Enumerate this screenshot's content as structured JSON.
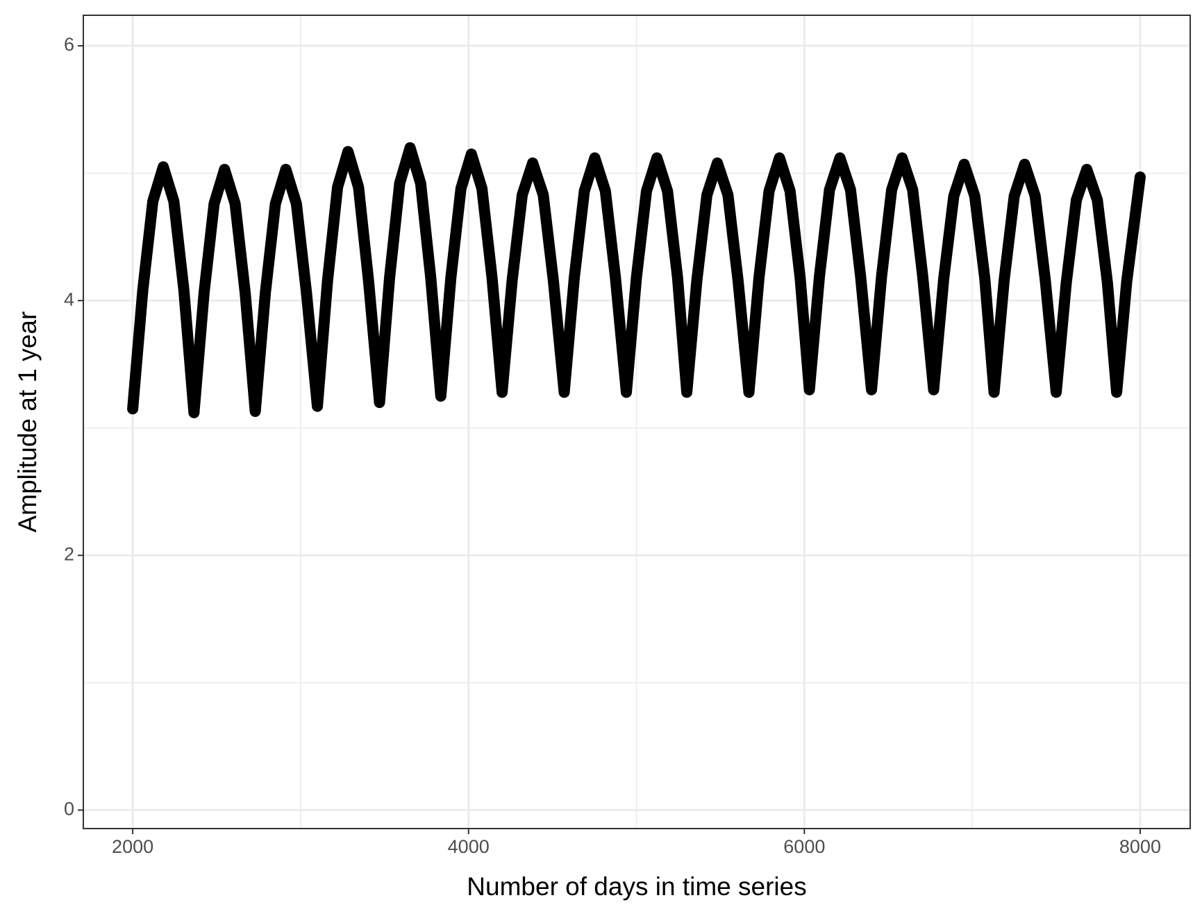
{
  "chart_data": {
    "type": "line",
    "x_label": "Number of days in time series",
    "y_label": "Amplitude at 1 year",
    "xlim": [
      1706,
      8298
    ],
    "ylim": [
      -0.145,
      6.24
    ],
    "xticks": [
      2000,
      4000,
      6000,
      8000
    ],
    "yticks": [
      0,
      2,
      4,
      6
    ],
    "xminor": [
      3000,
      5000,
      7000
    ],
    "yminor": [
      1,
      3,
      5
    ],
    "grid": true,
    "series": [
      {
        "color": "#000000",
        "x": [
          2000,
          2060,
          2120,
          2182,
          2245,
          2305,
          2365,
          2425,
          2485,
          2547,
          2610,
          2670,
          2730,
          2790,
          2850,
          2912,
          2975,
          3035,
          3100,
          3160,
          3220,
          3282,
          3345,
          3405,
          3470,
          3530,
          3590,
          3652,
          3715,
          3775,
          3835,
          3895,
          3955,
          4017,
          4080,
          4140,
          4200,
          4260,
          4320,
          4382,
          4445,
          4505,
          4570,
          4630,
          4690,
          4752,
          4815,
          4875,
          4940,
          5000,
          5060,
          5122,
          5185,
          5245,
          5300,
          5360,
          5420,
          5482,
          5545,
          5605,
          5670,
          5730,
          5790,
          5852,
          5915,
          5975,
          6030,
          6090,
          6150,
          6212,
          6275,
          6335,
          6400,
          6460,
          6520,
          6582,
          6645,
          6705,
          6770,
          6830,
          6890,
          6952,
          7015,
          7075,
          7130,
          7190,
          7250,
          7312,
          7375,
          7435,
          7500,
          7560,
          7620,
          7682,
          7745,
          7805,
          7860,
          7920,
          8000
        ],
        "values": [
          3.15,
          4.08,
          4.78,
          5.05,
          4.78,
          4.08,
          3.12,
          4.06,
          4.76,
          5.03,
          4.76,
          4.06,
          3.13,
          4.06,
          4.76,
          5.03,
          4.76,
          4.06,
          3.17,
          4.15,
          4.89,
          5.17,
          4.89,
          4.15,
          3.2,
          4.18,
          4.92,
          5.2,
          4.92,
          4.18,
          3.25,
          4.18,
          4.88,
          5.15,
          4.88,
          4.18,
          3.28,
          4.16,
          4.83,
          5.08,
          4.83,
          4.16,
          3.28,
          4.18,
          4.86,
          5.12,
          4.86,
          4.18,
          3.28,
          4.18,
          4.86,
          5.12,
          4.86,
          4.18,
          3.28,
          4.16,
          4.83,
          5.08,
          4.83,
          4.16,
          3.28,
          4.18,
          4.86,
          5.12,
          4.86,
          4.18,
          3.3,
          4.19,
          4.87,
          5.12,
          4.87,
          4.19,
          3.3,
          4.19,
          4.87,
          5.12,
          4.87,
          4.19,
          3.3,
          4.17,
          4.82,
          5.07,
          4.82,
          4.17,
          3.28,
          4.16,
          4.82,
          5.07,
          4.82,
          4.16,
          3.28,
          4.14,
          4.79,
          5.03,
          4.79,
          4.14,
          3.28,
          4.15,
          4.97
        ]
      }
    ]
  }
}
